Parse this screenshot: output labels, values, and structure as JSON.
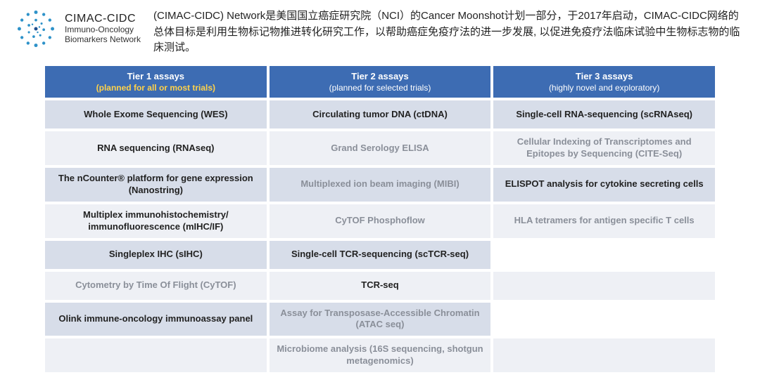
{
  "logo": {
    "title": "CIMAC-CIDC",
    "sub1": "Immuno-Oncology",
    "sub2": "Biomarkers Network",
    "dot_color": "#2e92c9",
    "accent_color": "#1f4f8f"
  },
  "description": "(CIMAC-CIDC) Network是美国国立癌症研究院（NCI）的Cancer Moonshot计划一部分，于2017年启动，CIMAC-CIDC网络的总体目标是利用生物标记物推进转化研究工作，以帮助癌症免疫疗法的进一步发展, 以促进免疫疗法临床试验中生物标志物的临床测试。",
  "table": {
    "header_bg": "#3d6cb3",
    "row_bg": "#d7dde9",
    "row_alt_bg": "#eef0f5",
    "tier1_sub_color": "#ffd24a",
    "primary_text_color": "#222222",
    "secondary_text_color": "#8a8f99",
    "columns": [
      {
        "title": "Tier 1 assays",
        "sub": "(planned for all or most trials)",
        "klass": "tier1"
      },
      {
        "title": "Tier 2 assays",
        "sub": "(planned for selected trials)",
        "klass": "tier2"
      },
      {
        "title": "Tier 3 assays",
        "sub": "(highly novel and exploratory)",
        "klass": "tier3"
      }
    ],
    "rows": [
      [
        {
          "text": "Whole Exome Sequencing (WES)",
          "style": "primary"
        },
        {
          "text": "Circulating tumor DNA (ctDNA)",
          "style": "primary"
        },
        {
          "text": "Single-cell RNA-sequencing (scRNAseq)",
          "style": "primary"
        }
      ],
      [
        {
          "text": "RNA sequencing (RNAseq)",
          "style": "primary"
        },
        {
          "text": "Grand Serology ELISA",
          "style": "secondary"
        },
        {
          "text": "Cellular Indexing of Transcriptomes and Epitopes by Sequencing (CITE-Seq)",
          "style": "secondary"
        }
      ],
      [
        {
          "text": "The nCounter® platform for gene expression (Nanostring)",
          "style": "primary"
        },
        {
          "text": "Multiplexed ion beam imaging (MIBI)",
          "style": "secondary"
        },
        {
          "text": "ELISPOT analysis for cytokine secreting cells",
          "style": "primary"
        }
      ],
      [
        {
          "text": "Multiplex immunohistochemistry/ immunofluorescence (mIHC/IF)",
          "style": "primary"
        },
        {
          "text": "CyTOF Phosphoflow",
          "style": "secondary"
        },
        {
          "text": "HLA tetramers for antigen specific T cells",
          "style": "secondary"
        }
      ],
      [
        {
          "text": "Singleplex IHC (sIHC)",
          "style": "primary"
        },
        {
          "text": "Single-cell TCR-sequencing (scTCR-seq)",
          "style": "primary"
        },
        {
          "text": "",
          "style": "empty"
        }
      ],
      [
        {
          "text": "Cytometry by Time Of Flight (CyTOF)",
          "style": "secondary"
        },
        {
          "text": "TCR-seq",
          "style": "primary"
        },
        {
          "text": "",
          "style": "empty"
        }
      ],
      [
        {
          "text": "Olink immune-oncology immunoassay panel",
          "style": "primary"
        },
        {
          "text": "Assay for Transposase-Accessible Chromatin (ATAC seq)",
          "style": "secondary"
        },
        {
          "text": "",
          "style": "empty"
        }
      ],
      [
        {
          "text": "",
          "style": "empty"
        },
        {
          "text": "Microbiome analysis (16S sequencing, shotgun metagenomics)",
          "style": "secondary"
        },
        {
          "text": "",
          "style": "empty"
        }
      ]
    ]
  }
}
